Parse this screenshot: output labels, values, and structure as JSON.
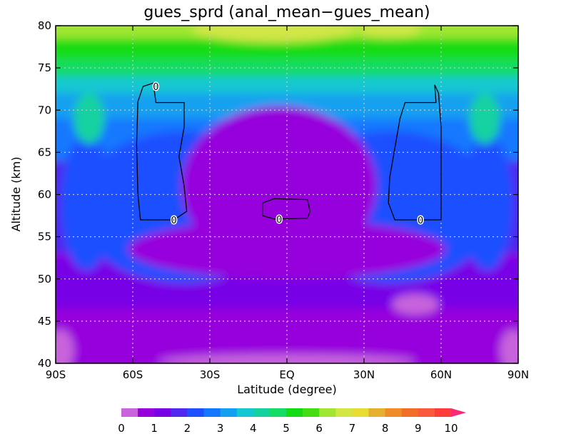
{
  "chart_data": {
    "type": "heatmap",
    "title": "gues_sprd (anal_mean−gues_mean)",
    "xlabel": "Latitude (degree)",
    "ylabel": "Altitude (km)",
    "xlim": [
      -90,
      90
    ],
    "ylim": [
      40,
      80
    ],
    "x_ticks": [
      {
        "value": -90,
        "label": "90S"
      },
      {
        "value": -60,
        "label": "60S"
      },
      {
        "value": -30,
        "label": "30S"
      },
      {
        "value": 0,
        "label": "EQ"
      },
      {
        "value": 30,
        "label": "30N"
      },
      {
        "value": 60,
        "label": "60N"
      },
      {
        "value": 90,
        "label": "90N"
      }
    ],
    "y_ticks": [
      40,
      45,
      50,
      55,
      60,
      65,
      70,
      75,
      80
    ],
    "grid": "dotted",
    "colorbar": {
      "levels": [
        0,
        0.5,
        1,
        1.5,
        2,
        2.5,
        3,
        3.5,
        4,
        4.5,
        5,
        5.5,
        6,
        6.5,
        7,
        7.5,
        8,
        8.5,
        9,
        9.5,
        10
      ],
      "labels": [
        "0",
        "1",
        "2",
        "3",
        "4",
        "5",
        "6",
        "7",
        "8",
        "9",
        "10"
      ],
      "colors": [
        "#c864dc",
        "#9600dc",
        "#7800e6",
        "#5028f0",
        "#1e50ff",
        "#1478ff",
        "#14a0f0",
        "#14c8d2",
        "#14d2a0",
        "#14dc64",
        "#14dc14",
        "#46dc14",
        "#a0e632",
        "#d2e646",
        "#e6dc32",
        "#e6af2d",
        "#f08c28",
        "#f06e28",
        "#fa5a3c",
        "#ff3c3c",
        "#ff2878"
      ],
      "extend": "max"
    },
    "contour_label": "0"
  }
}
